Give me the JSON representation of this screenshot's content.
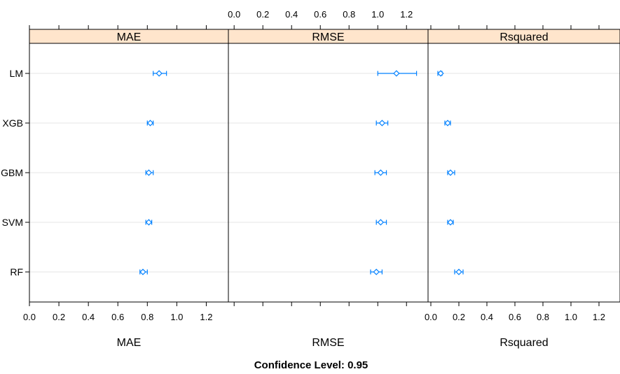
{
  "chart_data": {
    "type": "dotplot-with-error-bars",
    "panels": [
      {
        "strip_label": "MAE",
        "xlabel": "MAE",
        "xlim": [
          0.0,
          1.35
        ],
        "ticks": [
          "0.0",
          "0.2",
          "0.4",
          "0.6",
          "0.8",
          "1.0",
          "1.2"
        ],
        "tick_axis": "bottom",
        "points": [
          {
            "model": "LM",
            "estimate": 0.88,
            "lower": 0.84,
            "upper": 0.93
          },
          {
            "model": "XGB",
            "estimate": 0.82,
            "lower": 0.8,
            "upper": 0.84
          },
          {
            "model": "GBM",
            "estimate": 0.81,
            "lower": 0.79,
            "upper": 0.84
          },
          {
            "model": "SVM",
            "estimate": 0.81,
            "lower": 0.79,
            "upper": 0.83
          },
          {
            "model": "RF",
            "estimate": 0.77,
            "lower": 0.75,
            "upper": 0.8
          }
        ]
      },
      {
        "strip_label": "RMSE",
        "xlabel": "RMSE",
        "xlim": [
          -0.04,
          1.35
        ],
        "ticks": [
          "0.0",
          "0.2",
          "0.4",
          "0.6",
          "0.8",
          "1.0",
          "1.2"
        ],
        "tick_axis": "top",
        "points": [
          {
            "model": "LM",
            "estimate": 1.13,
            "lower": 1.0,
            "upper": 1.27
          },
          {
            "model": "XGB",
            "estimate": 1.03,
            "lower": 0.99,
            "upper": 1.07
          },
          {
            "model": "GBM",
            "estimate": 1.02,
            "lower": 0.98,
            "upper": 1.06
          },
          {
            "model": "SVM",
            "estimate": 1.02,
            "lower": 0.99,
            "upper": 1.06
          },
          {
            "model": "RF",
            "estimate": 0.99,
            "lower": 0.95,
            "upper": 1.03
          }
        ]
      },
      {
        "strip_label": "Rsquared",
        "xlabel": "Rsquared",
        "xlim": [
          -0.02,
          1.35
        ],
        "ticks": [
          "0.0",
          "0.2",
          "0.4",
          "0.6",
          "0.8",
          "1.0",
          "1.2"
        ],
        "tick_axis": "bottom",
        "points": [
          {
            "model": "LM",
            "estimate": 0.07,
            "lower": 0.05,
            "upper": 0.08
          },
          {
            "model": "XGB",
            "estimate": 0.12,
            "lower": 0.1,
            "upper": 0.14
          },
          {
            "model": "GBM",
            "estimate": 0.14,
            "lower": 0.12,
            "upper": 0.17
          },
          {
            "model": "SVM",
            "estimate": 0.14,
            "lower": 0.12,
            "upper": 0.16
          },
          {
            "model": "RF",
            "estimate": 0.2,
            "lower": 0.17,
            "upper": 0.23
          }
        ]
      }
    ],
    "models": [
      "LM",
      "XGB",
      "GBM",
      "SVM",
      "RF"
    ],
    "caption": "Confidence Level: 0.95",
    "colors": {
      "strip_fill": "#ffe5cc",
      "point": "#0080ff",
      "gridline": "#e6e6e6",
      "frame": "#000000"
    }
  }
}
